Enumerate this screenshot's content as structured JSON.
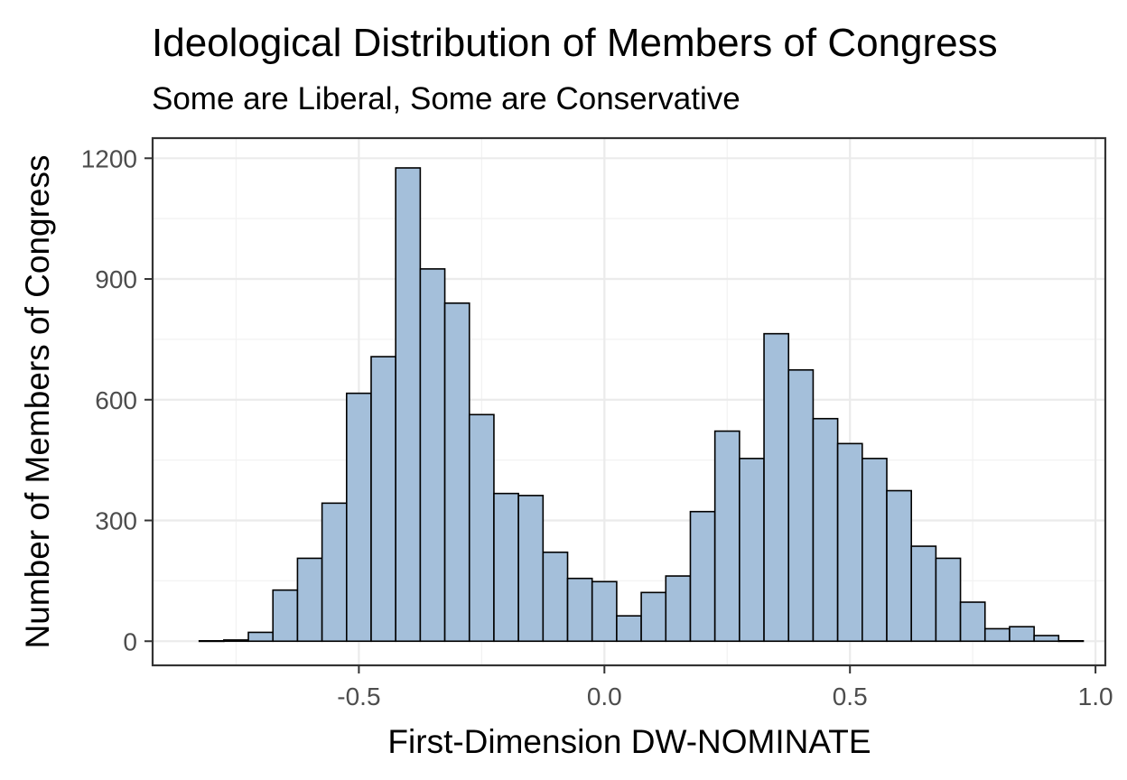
{
  "chart_data": {
    "type": "bar",
    "title": "Ideological Distribution of Members of Congress",
    "subtitle": "Some are Liberal, Some are Conservative",
    "xlabel": "First-Dimension DW-NOMINATE",
    "ylabel": "Number of Members of Congress",
    "xlim": [
      -0.92,
      1.02
    ],
    "ylim": [
      -60,
      1250
    ],
    "x_ticks": [
      -0.5,
      0.0,
      0.5,
      1.0
    ],
    "x_tick_labels": [
      "-0.5",
      "0.0",
      "0.5",
      "1.0"
    ],
    "y_ticks": [
      0,
      300,
      600,
      900,
      1200
    ],
    "y_tick_labels": [
      "0",
      "300",
      "600",
      "900",
      "1200"
    ],
    "bin_width": 0.05,
    "bins_start": -0.825,
    "values": [
      1,
      3,
      22,
      127,
      206,
      343,
      616,
      707,
      1176,
      925,
      840,
      563,
      367,
      362,
      221,
      156,
      148,
      63,
      121,
      162,
      322,
      522,
      454,
      764,
      674,
      553,
      491,
      454,
      374,
      236,
      206,
      97,
      31,
      36,
      14,
      1
    ],
    "bar_fill": "#a4bfda",
    "bar_outline": "#000000",
    "grid": true,
    "legend": "none"
  }
}
